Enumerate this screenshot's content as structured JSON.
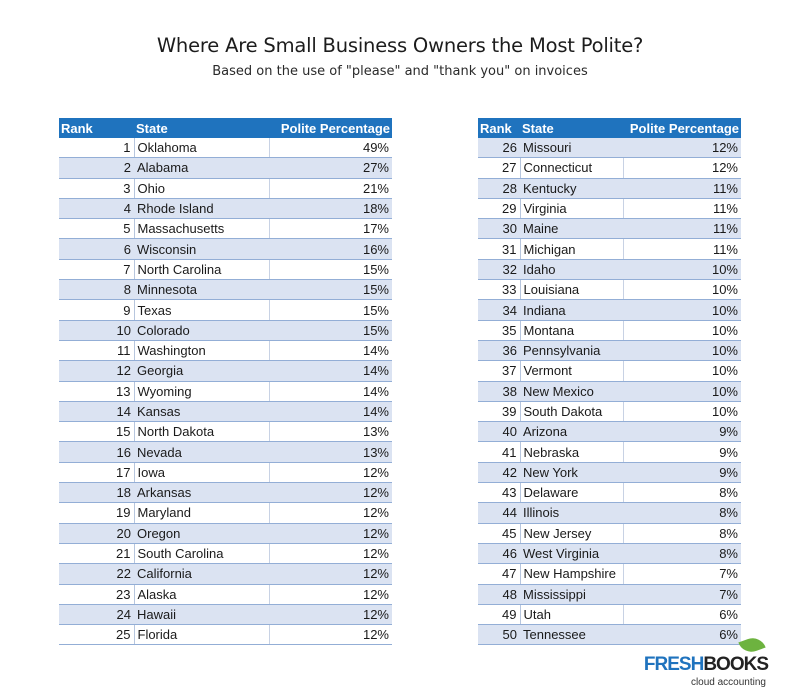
{
  "title": "Where Are Small Business Owners the Most Polite?",
  "subtitle": "Based on the use of \"please\" and \"thank you\" on invoices",
  "headers": {
    "rank": "Rank",
    "state": "State",
    "pct": "Polite Percentage"
  },
  "left_rows": [
    {
      "rank": "1",
      "state": "Oklahoma",
      "pct": "49%"
    },
    {
      "rank": "2",
      "state": "Alabama",
      "pct": "27%"
    },
    {
      "rank": "3",
      "state": "Ohio",
      "pct": "21%"
    },
    {
      "rank": "4",
      "state": "Rhode Island",
      "pct": "18%"
    },
    {
      "rank": "5",
      "state": "Massachusetts",
      "pct": "17%"
    },
    {
      "rank": "6",
      "state": "Wisconsin",
      "pct": "16%"
    },
    {
      "rank": "7",
      "state": "North Carolina",
      "pct": "15%"
    },
    {
      "rank": "8",
      "state": "Minnesota",
      "pct": "15%"
    },
    {
      "rank": "9",
      "state": "Texas",
      "pct": "15%"
    },
    {
      "rank": "10",
      "state": "Colorado",
      "pct": "15%"
    },
    {
      "rank": "11",
      "state": "Washington",
      "pct": "14%"
    },
    {
      "rank": "12",
      "state": "Georgia",
      "pct": "14%"
    },
    {
      "rank": "13",
      "state": "Wyoming",
      "pct": "14%"
    },
    {
      "rank": "14",
      "state": "Kansas",
      "pct": "14%"
    },
    {
      "rank": "15",
      "state": "North Dakota",
      "pct": "13%"
    },
    {
      "rank": "16",
      "state": "Nevada",
      "pct": "13%"
    },
    {
      "rank": "17",
      "state": "Iowa",
      "pct": "12%"
    },
    {
      "rank": "18",
      "state": "Arkansas",
      "pct": "12%"
    },
    {
      "rank": "19",
      "state": "Maryland",
      "pct": "12%"
    },
    {
      "rank": "20",
      "state": "Oregon",
      "pct": "12%"
    },
    {
      "rank": "21",
      "state": "South Carolina",
      "pct": "12%"
    },
    {
      "rank": "22",
      "state": "California",
      "pct": "12%"
    },
    {
      "rank": "23",
      "state": "Alaska",
      "pct": "12%"
    },
    {
      "rank": "24",
      "state": "Hawaii",
      "pct": "12%"
    },
    {
      "rank": "25",
      "state": "Florida",
      "pct": "12%"
    }
  ],
  "right_rows": [
    {
      "rank": "26",
      "state": "Missouri",
      "pct": "12%"
    },
    {
      "rank": "27",
      "state": "Connecticut",
      "pct": "12%"
    },
    {
      "rank": "28",
      "state": "Kentucky",
      "pct": "11%"
    },
    {
      "rank": "29",
      "state": "Virginia",
      "pct": "11%"
    },
    {
      "rank": "30",
      "state": "Maine",
      "pct": "11%"
    },
    {
      "rank": "31",
      "state": "Michigan",
      "pct": "11%"
    },
    {
      "rank": "32",
      "state": "Idaho",
      "pct": "10%"
    },
    {
      "rank": "33",
      "state": "Louisiana",
      "pct": "10%"
    },
    {
      "rank": "34",
      "state": "Indiana",
      "pct": "10%"
    },
    {
      "rank": "35",
      "state": "Montana",
      "pct": "10%"
    },
    {
      "rank": "36",
      "state": "Pennsylvania",
      "pct": "10%"
    },
    {
      "rank": "37",
      "state": "Vermont",
      "pct": "10%"
    },
    {
      "rank": "38",
      "state": "New Mexico",
      "pct": "10%"
    },
    {
      "rank": "39",
      "state": "South Dakota",
      "pct": "10%"
    },
    {
      "rank": "40",
      "state": "Arizona",
      "pct": "9%"
    },
    {
      "rank": "41",
      "state": "Nebraska",
      "pct": "9%"
    },
    {
      "rank": "42",
      "state": "New York",
      "pct": "9%"
    },
    {
      "rank": "43",
      "state": "Delaware",
      "pct": "8%"
    },
    {
      "rank": "44",
      "state": "Illinois",
      "pct": "8%"
    },
    {
      "rank": "45",
      "state": "New Jersey",
      "pct": "8%"
    },
    {
      "rank": "46",
      "state": "West Virginia",
      "pct": "8%"
    },
    {
      "rank": "47",
      "state": "New Hampshire",
      "pct": "7%"
    },
    {
      "rank": "48",
      "state": "Mississippi",
      "pct": "7%"
    },
    {
      "rank": "49",
      "state": "Utah",
      "pct": "6%"
    },
    {
      "rank": "50",
      "state": "Tennessee",
      "pct": "6%"
    }
  ],
  "logo": {
    "fresh": "FRESH",
    "books": "BOOKS",
    "tagline": "cloud accounting"
  },
  "colors": {
    "header": "#1f73be",
    "shade": "#dbe3f2",
    "leaf": "#6db33f"
  }
}
